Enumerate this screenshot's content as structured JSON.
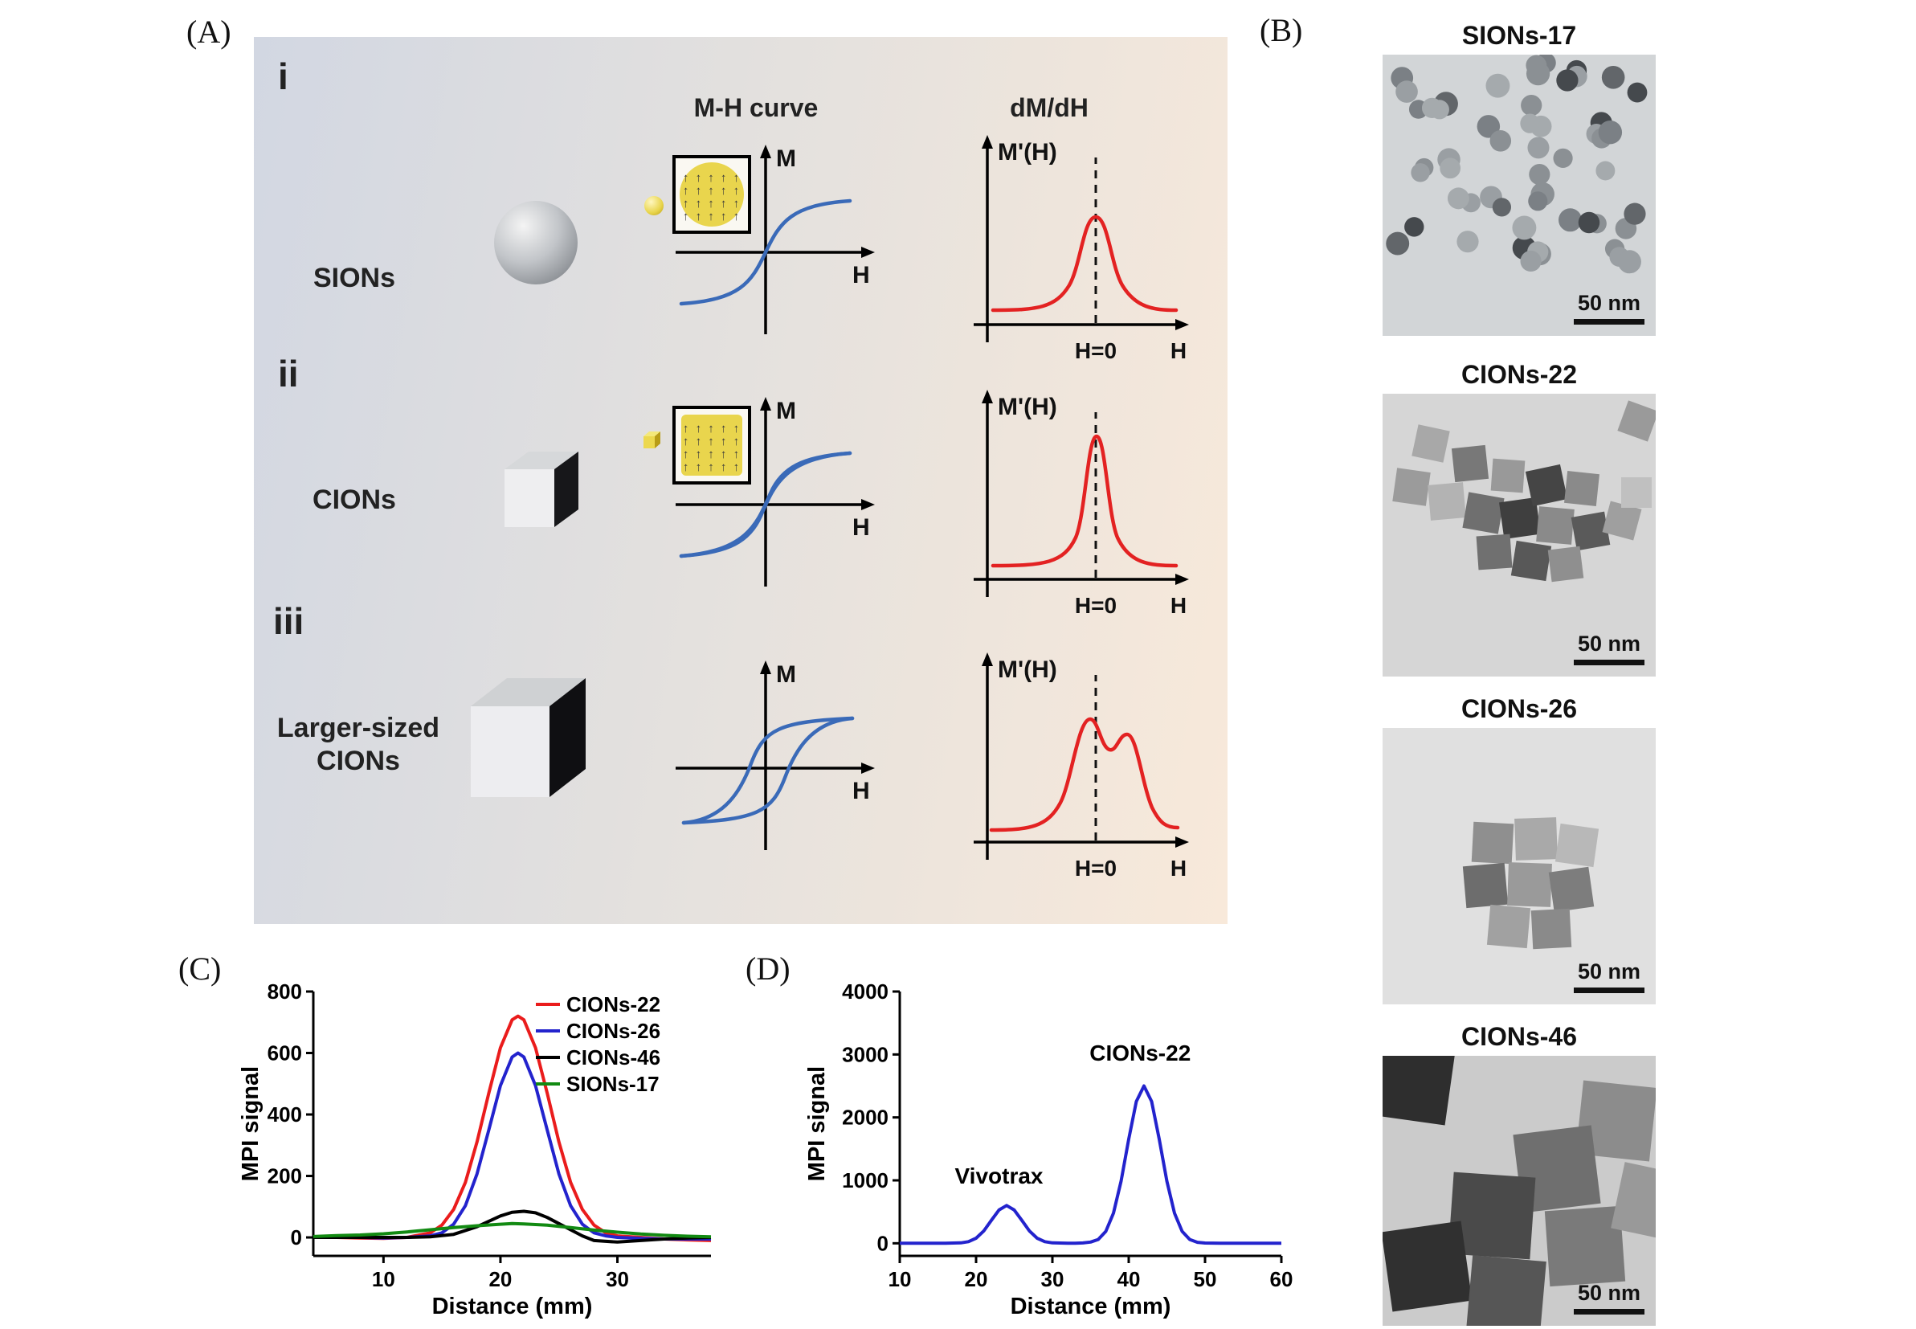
{
  "figure": {
    "labels": {
      "a": "(A)",
      "b": "(B)",
      "c": "(C)",
      "d": "(D)"
    }
  },
  "panel_a": {
    "headers": {
      "mh": "M-H curve",
      "dmdh": "dM/dH"
    },
    "rows": [
      {
        "idx": "i",
        "name": "SIONs"
      },
      {
        "idx": "ii",
        "name": "CIONs"
      },
      {
        "idx": "iii",
        "name": "Larger-sized CIONs"
      }
    ],
    "axes": {
      "m": "M",
      "h": "H",
      "mprime": "M'(H)",
      "h0": "H=0"
    },
    "spin_row": "↑ ↑ ↑ ↑ ↑",
    "colors": {
      "curve_blue": "#3a6ab8",
      "curve_red": "#e32222"
    }
  },
  "panel_b": {
    "images": [
      {
        "title": "SIONs-17",
        "scale_label": "50 nm"
      },
      {
        "title": "CIONs-22",
        "scale_label": "50 nm"
      },
      {
        "title": "CIONs-26",
        "scale_label": "50 nm"
      },
      {
        "title": "CIONs-46",
        "scale_label": "50 nm"
      }
    ]
  },
  "chart_data": [
    {
      "id": "panel_c",
      "type": "line",
      "title": "",
      "xlabel": "Distance (mm)",
      "ylabel": "MPI signal",
      "xlim": [
        4,
        38
      ],
      "ylim": [
        -60,
        800
      ],
      "xticks": [
        10,
        20,
        30
      ],
      "yticks": [
        0,
        200,
        400,
        600,
        800
      ],
      "grid": false,
      "legend": true,
      "legend_position": "top-right",
      "series": [
        {
          "name": "CIONs-22",
          "color": "#ea1c1c",
          "points": [
            [
              4,
              0
            ],
            [
              6,
              0
            ],
            [
              8,
              -2
            ],
            [
              10,
              -3
            ],
            [
              12,
              0
            ],
            [
              14,
              15
            ],
            [
              15,
              40
            ],
            [
              16,
              91
            ],
            [
              17,
              179
            ],
            [
              18,
              311
            ],
            [
              19,
              469
            ],
            [
              20,
              617
            ],
            [
              21,
              708
            ],
            [
              21.5,
              720
            ],
            [
              22,
              708
            ],
            [
              23,
              617
            ],
            [
              24,
              469
            ],
            [
              25,
              311
            ],
            [
              26,
              179
            ],
            [
              27,
              91
            ],
            [
              28,
              40
            ],
            [
              29,
              15
            ],
            [
              30,
              5
            ],
            [
              32,
              0
            ],
            [
              34,
              -5
            ],
            [
              36,
              -8
            ],
            [
              38,
              -10
            ]
          ]
        },
        {
          "name": "CIONs-26",
          "color": "#2323cd",
          "points": [
            [
              4,
              0
            ],
            [
              6,
              0
            ],
            [
              8,
              0
            ],
            [
              10,
              -2
            ],
            [
              12,
              0
            ],
            [
              14,
              5
            ],
            [
              15,
              15
            ],
            [
              16,
              43
            ],
            [
              17,
              103
            ],
            [
              18,
              207
            ],
            [
              19,
              349
            ],
            [
              20,
              494
            ],
            [
              21,
              587
            ],
            [
              21.5,
              600
            ],
            [
              22,
              587
            ],
            [
              23,
              494
            ],
            [
              24,
              349
            ],
            [
              25,
              207
            ],
            [
              26,
              103
            ],
            [
              27,
              43
            ],
            [
              28,
              15
            ],
            [
              29,
              5
            ],
            [
              30,
              0
            ],
            [
              32,
              -3
            ],
            [
              34,
              -5
            ],
            [
              36,
              -5
            ],
            [
              38,
              -5
            ]
          ]
        },
        {
          "name": "CIONs-46",
          "color": "#000000",
          "points": [
            [
              4,
              0
            ],
            [
              8,
              0
            ],
            [
              12,
              0
            ],
            [
              14,
              2
            ],
            [
              16,
              10
            ],
            [
              18,
              35
            ],
            [
              20,
              70
            ],
            [
              21,
              82
            ],
            [
              22,
              85
            ],
            [
              23,
              80
            ],
            [
              24,
              65
            ],
            [
              25,
              45
            ],
            [
              26,
              25
            ],
            [
              27,
              5
            ],
            [
              28,
              -10
            ],
            [
              30,
              -15
            ],
            [
              32,
              -10
            ],
            [
              34,
              -5
            ],
            [
              36,
              -2
            ],
            [
              38,
              0
            ]
          ]
        },
        {
          "name": "SIONs-17",
          "color": "#128a12",
          "points": [
            [
              4,
              3
            ],
            [
              6,
              6
            ],
            [
              8,
              8
            ],
            [
              10,
              12
            ],
            [
              12,
              18
            ],
            [
              14,
              25
            ],
            [
              16,
              32
            ],
            [
              18,
              38
            ],
            [
              20,
              43
            ],
            [
              21,
              45
            ],
            [
              22,
              44
            ],
            [
              24,
              40
            ],
            [
              26,
              32
            ],
            [
              28,
              24
            ],
            [
              30,
              17
            ],
            [
              32,
              11
            ],
            [
              34,
              7
            ],
            [
              36,
              4
            ],
            [
              38,
              2
            ]
          ]
        }
      ]
    },
    {
      "id": "panel_d",
      "type": "line",
      "title": "",
      "xlabel": "Distance (mm)",
      "ylabel": "MPI signal",
      "xlim": [
        10,
        60
      ],
      "ylim": [
        -200,
        4000
      ],
      "xticks": [
        10,
        20,
        30,
        40,
        50,
        60
      ],
      "yticks": [
        0,
        1000,
        2000,
        3000,
        4000
      ],
      "grid": false,
      "legend": false,
      "annotations": [
        {
          "text": "Vivotrax",
          "x": 23,
          "y": 950
        },
        {
          "text": "CIONs-22",
          "x": 41.5,
          "y": 2900
        }
      ],
      "series": [
        {
          "name": "CIONs-22",
          "color": "#2323cd",
          "points": [
            [
              10,
              0
            ],
            [
              12,
              0
            ],
            [
              14,
              0
            ],
            [
              16,
              2
            ],
            [
              18,
              7
            ],
            [
              19,
              26
            ],
            [
              20,
              81
            ],
            [
              21,
              195
            ],
            [
              22,
              364
            ],
            [
              23,
              529
            ],
            [
              24,
              600
            ],
            [
              25,
              529
            ],
            [
              26,
              364
            ],
            [
              27,
              195
            ],
            [
              28,
              81
            ],
            [
              29,
              26
            ],
            [
              30,
              7
            ],
            [
              32,
              0
            ],
            [
              33,
              0
            ],
            [
              34,
              5
            ],
            [
              35,
              20
            ],
            [
              36,
              60
            ],
            [
              37,
              189
            ],
            [
              38,
              478
            ],
            [
              39,
              987
            ],
            [
              40,
              1654
            ],
            [
              41,
              2255
            ],
            [
              42,
              2500
            ],
            [
              43,
              2255
            ],
            [
              44,
              1654
            ],
            [
              45,
              987
            ],
            [
              46,
              478
            ],
            [
              47,
              189
            ],
            [
              48,
              60
            ],
            [
              49,
              16
            ],
            [
              50,
              4
            ],
            [
              52,
              0
            ],
            [
              54,
              0
            ],
            [
              56,
              0
            ],
            [
              58,
              0
            ],
            [
              60,
              0
            ]
          ]
        }
      ]
    }
  ]
}
